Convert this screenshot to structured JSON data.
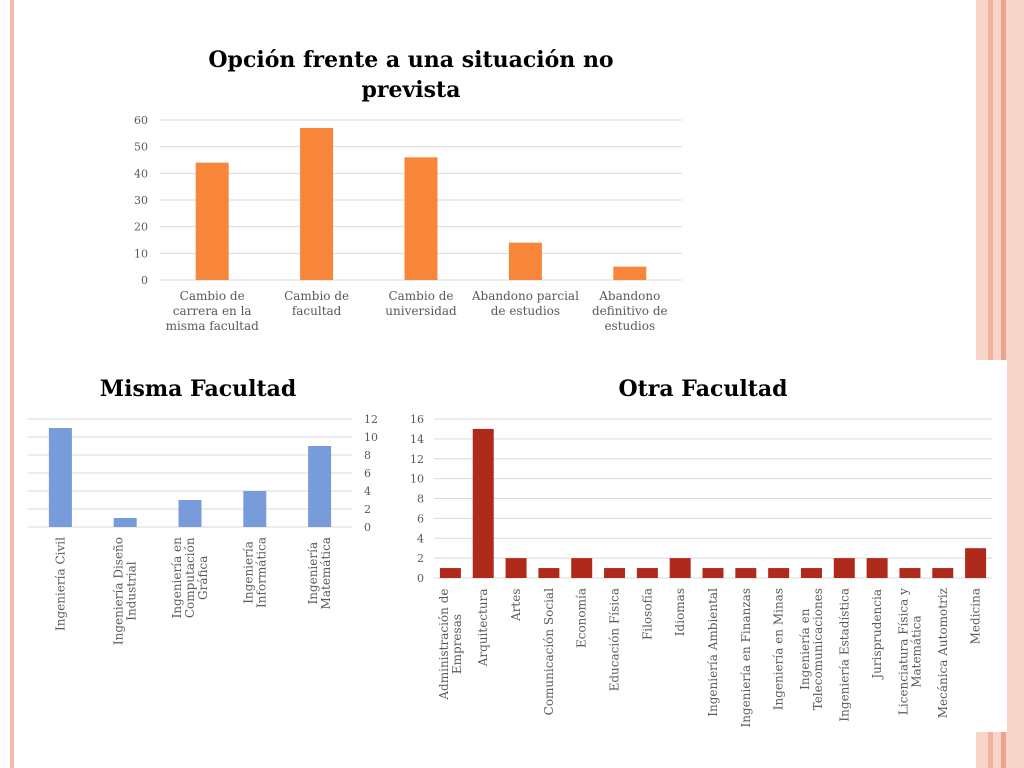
{
  "slide": {
    "colors": {
      "left_stripe": "#f3bba8",
      "right_stripe_light": "#f8d5c9",
      "right_stripe_mid": "#f2b39e",
      "right_stripe_dark": "#eea48c"
    }
  },
  "chart_data": [
    {
      "id": "top",
      "type": "bar",
      "title_lines": [
        "Opción frente a una situación no",
        "prevista"
      ],
      "categories": [
        [
          "Cambio de",
          "carrera en la",
          "misma facultad"
        ],
        [
          "Cambio de",
          "facultad"
        ],
        [
          "Cambio de",
          "universidad"
        ],
        [
          "Abandono parcial",
          "de estudios"
        ],
        [
          "Abandono",
          "definitivo de",
          "estudios"
        ]
      ],
      "values": [
        44,
        57,
        46,
        14,
        5
      ],
      "ylim": [
        0,
        60
      ],
      "yticks": [
        0,
        10,
        20,
        30,
        40,
        50,
        60
      ],
      "color": "#f7863a",
      "grid": true
    },
    {
      "id": "misma",
      "type": "bar",
      "title": "Misma Facultad",
      "categories": [
        [
          "Ingeniería Civil"
        ],
        [
          "Ingeniería Diseño",
          "Industrial"
        ],
        [
          "Ingeniería en",
          "Computación",
          "Gráfica"
        ],
        [
          "Ingeniería",
          "Informática"
        ],
        [
          "Ingeniería",
          "Matemática"
        ]
      ],
      "values": [
        11,
        1,
        3,
        4,
        9
      ],
      "ylim": [
        0,
        12
      ],
      "yticks": [
        0,
        2,
        4,
        6,
        8,
        10,
        12
      ],
      "y_axis_side": "right",
      "color": "#779bdb",
      "grid": true
    },
    {
      "id": "otra",
      "type": "bar",
      "title": "Otra Facultad",
      "categories": [
        [
          "Administración de",
          "Empresas"
        ],
        [
          "Arquitectura"
        ],
        [
          "Artes"
        ],
        [
          "Comunicación Social"
        ],
        [
          "Economía"
        ],
        [
          "Educación Física"
        ],
        [
          "Filosofía"
        ],
        [
          "Idiomas"
        ],
        [
          "Ingeniería Ambiental"
        ],
        [
          "Ingeniería en Finanzas"
        ],
        [
          "Ingeniería en Minas"
        ],
        [
          "Ingeniería en",
          "Telecomunicaciones"
        ],
        [
          "Ingeniería Estadística"
        ],
        [
          "Jurisprudencia"
        ],
        [
          "Licenciatura Física y",
          "Matemática"
        ],
        [
          "Mecánica Automotriz"
        ],
        [
          "Medicina"
        ]
      ],
      "values": [
        1,
        15,
        2,
        1,
        2,
        1,
        1,
        2,
        1,
        1,
        1,
        1,
        2,
        2,
        1,
        1,
        3
      ],
      "ylim": [
        0,
        16
      ],
      "yticks": [
        0,
        2,
        4,
        6,
        8,
        10,
        12,
        14,
        16
      ],
      "color": "#b02a1c",
      "grid": true
    }
  ]
}
